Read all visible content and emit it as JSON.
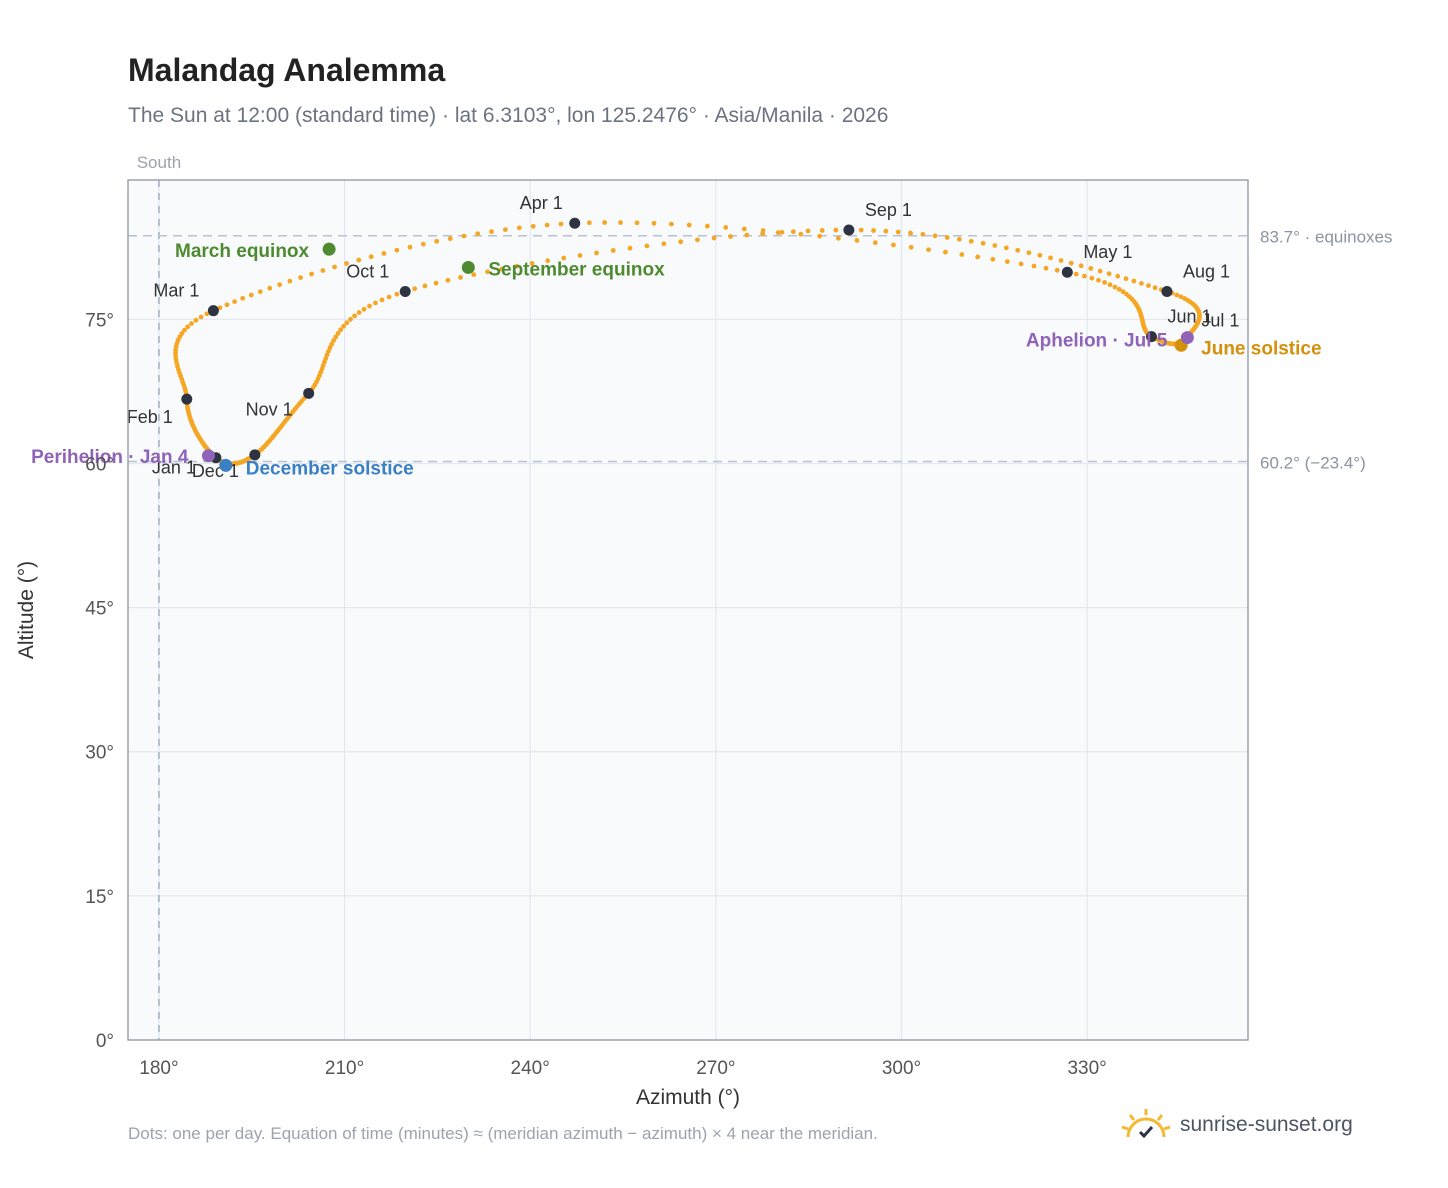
{
  "title": "Malandag Analemma",
  "subtitle": "The Sun at 12:00 (standard time) · lat 6.3103°, lon 125.2476° · Asia/Manila · 2026",
  "footnote": "Dots: one per day. Equation of time (minutes) ≈ (meridian azimuth − azimuth) × 4 near the meridian.",
  "brand": {
    "name": "sunrise-sunset.org",
    "icon": "sun-check-icon"
  },
  "colors": {
    "curve": "#f5a623",
    "month_point": "#2d3340",
    "equinox": "#4e8a2f",
    "december_solstice": "#3b7fc4",
    "june_solstice": "#d4900a",
    "apsis": "#8e63b8",
    "plot_bg": "#f8fafc",
    "grid": "#e3e8ef",
    "axis": "#9ca3af"
  },
  "chart_data": {
    "type": "scatter",
    "xlabel": "Azimuth (°)",
    "ylabel": "Altitude (°)",
    "xlim": [
      175,
      356
    ],
    "ylim": [
      0,
      89.5
    ],
    "x_ticks": [
      {
        "value": 180,
        "label": "180°"
      },
      {
        "value": 210,
        "label": "210°"
      },
      {
        "value": 240,
        "label": "240°"
      },
      {
        "value": 270,
        "label": "270°"
      },
      {
        "value": 300,
        "label": "300°"
      },
      {
        "value": 330,
        "label": "330°"
      }
    ],
    "y_ticks": [
      {
        "value": 0,
        "label": "0°"
      },
      {
        "value": 15,
        "label": "15°"
      },
      {
        "value": 30,
        "label": "30°"
      },
      {
        "value": 45,
        "label": "45°"
      },
      {
        "value": 60,
        "label": "60°"
      },
      {
        "value": 75,
        "label": "75°"
      }
    ],
    "meridian": {
      "x": 180,
      "label": "South"
    },
    "reference_lines": [
      {
        "y": 83.7,
        "label": "83.7° · equinoxes"
      },
      {
        "y": 60.2,
        "label": "60.2° (−23.4°)"
      }
    ],
    "month_markers": [
      {
        "label": "Jan 1",
        "az": 189.2,
        "alt": 60.6
      },
      {
        "label": "Feb 1",
        "az": 184.5,
        "alt": 66.7
      },
      {
        "label": "Mar 1",
        "az": 188.8,
        "alt": 75.9
      },
      {
        "label": "Apr 1",
        "az": 247.2,
        "alt": 85.0
      },
      {
        "label": "May 1",
        "az": 326.8,
        "alt": 79.9
      },
      {
        "label": "Jun 1",
        "az": 340.4,
        "alt": 73.2
      },
      {
        "label": "Jul 1",
        "az": 346.2,
        "alt": 73.1
      },
      {
        "label": "Aug 1",
        "az": 342.9,
        "alt": 77.9
      },
      {
        "label": "Sep 1",
        "az": 291.5,
        "alt": 84.3
      },
      {
        "label": "Oct 1",
        "az": 219.8,
        "alt": 77.9
      },
      {
        "label": "Nov 1",
        "az": 204.2,
        "alt": 67.3
      },
      {
        "label": "Dec 1",
        "az": 195.5,
        "alt": 60.9
      }
    ],
    "events": [
      {
        "label": "March equinox",
        "az": 207.5,
        "alt": 82.3,
        "color_key": "equinox"
      },
      {
        "label": "September equinox",
        "az": 230.0,
        "alt": 80.4,
        "color_key": "equinox"
      },
      {
        "label": "December solstice",
        "az": 190.8,
        "alt": 59.8,
        "color_key": "december_solstice"
      },
      {
        "label": "June solstice",
        "az": 345.2,
        "alt": 72.3,
        "color_key": "june_solstice"
      },
      {
        "label": "Perihelion · Jan 4",
        "az": 188.0,
        "alt": 60.8,
        "color_key": "apsis"
      },
      {
        "label": "Aphelion · Jul 5",
        "az": 346.2,
        "alt": 73.1,
        "color_key": "apsis"
      }
    ]
  }
}
